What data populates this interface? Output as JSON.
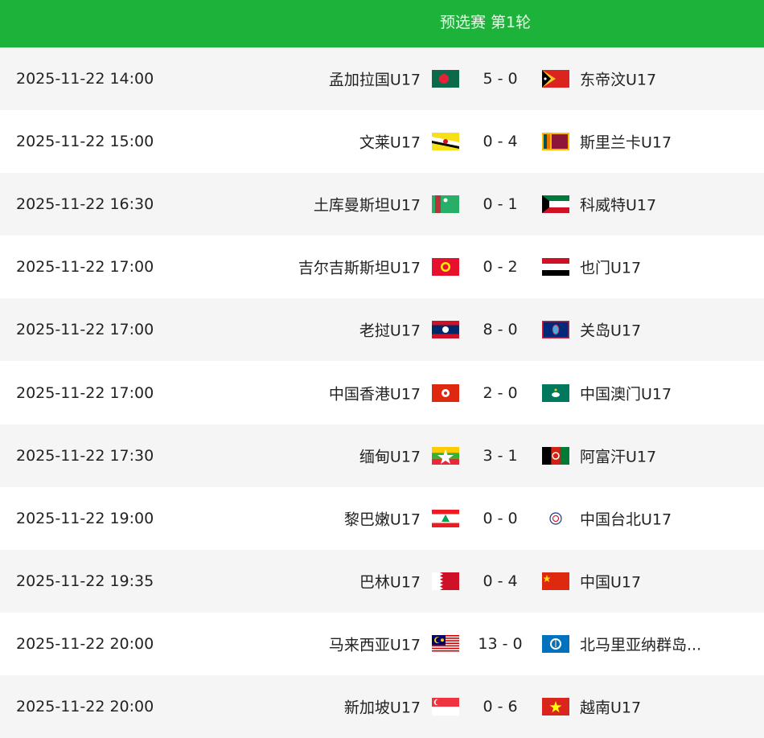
{
  "header": {
    "title": "预选赛 第1轮",
    "color": "#1db33b"
  },
  "matches": [
    {
      "time": "2025-11-22 14:00",
      "home": "孟加拉国U17",
      "home_flag": "bangladesh",
      "score": "5 - 0",
      "away": "东帝汶U17",
      "away_flag": "timor-leste"
    },
    {
      "time": "2025-11-22 15:00",
      "home": "文莱U17",
      "home_flag": "brunei",
      "score": "0 - 4",
      "away": "斯里兰卡U17",
      "away_flag": "sri-lanka"
    },
    {
      "time": "2025-11-22 16:30",
      "home": "土库曼斯坦U17",
      "home_flag": "turkmenistan",
      "score": "0 - 1",
      "away": "科威特U17",
      "away_flag": "kuwait"
    },
    {
      "time": "2025-11-22 17:00",
      "home": "吉尔吉斯斯坦U17",
      "home_flag": "kyrgyzstan",
      "score": "0 - 2",
      "away": "也门U17",
      "away_flag": "yemen"
    },
    {
      "time": "2025-11-22 17:00",
      "home": "老挝U17",
      "home_flag": "laos",
      "score": "8 - 0",
      "away": "关岛U17",
      "away_flag": "guam"
    },
    {
      "time": "2025-11-22 17:00",
      "home": "中国香港U17",
      "home_flag": "hong-kong",
      "score": "2 - 0",
      "away": "中国澳门U17",
      "away_flag": "macau"
    },
    {
      "time": "2025-11-22 17:30",
      "home": "缅甸U17",
      "home_flag": "myanmar",
      "score": "3 - 1",
      "away": "阿富汗U17",
      "away_flag": "afghanistan"
    },
    {
      "time": "2025-11-22 19:00",
      "home": "黎巴嫩U17",
      "home_flag": "lebanon",
      "score": "0 - 0",
      "away": "中国台北U17",
      "away_flag": "chinese-taipei"
    },
    {
      "time": "2025-11-22 19:35",
      "home": "巴林U17",
      "home_flag": "bahrain",
      "score": "0 - 4",
      "away": "中国U17",
      "away_flag": "china"
    },
    {
      "time": "2025-11-22 20:00",
      "home": "马来西亚U17",
      "home_flag": "malaysia",
      "score": "13 - 0",
      "away": "北马里亚纳群岛...",
      "away_flag": "northern-mariana-islands"
    },
    {
      "time": "2025-11-22 20:00",
      "home": "新加坡U17",
      "home_flag": "singapore",
      "score": "0 - 6",
      "away": "越南U17",
      "away_flag": "vietnam"
    }
  ]
}
